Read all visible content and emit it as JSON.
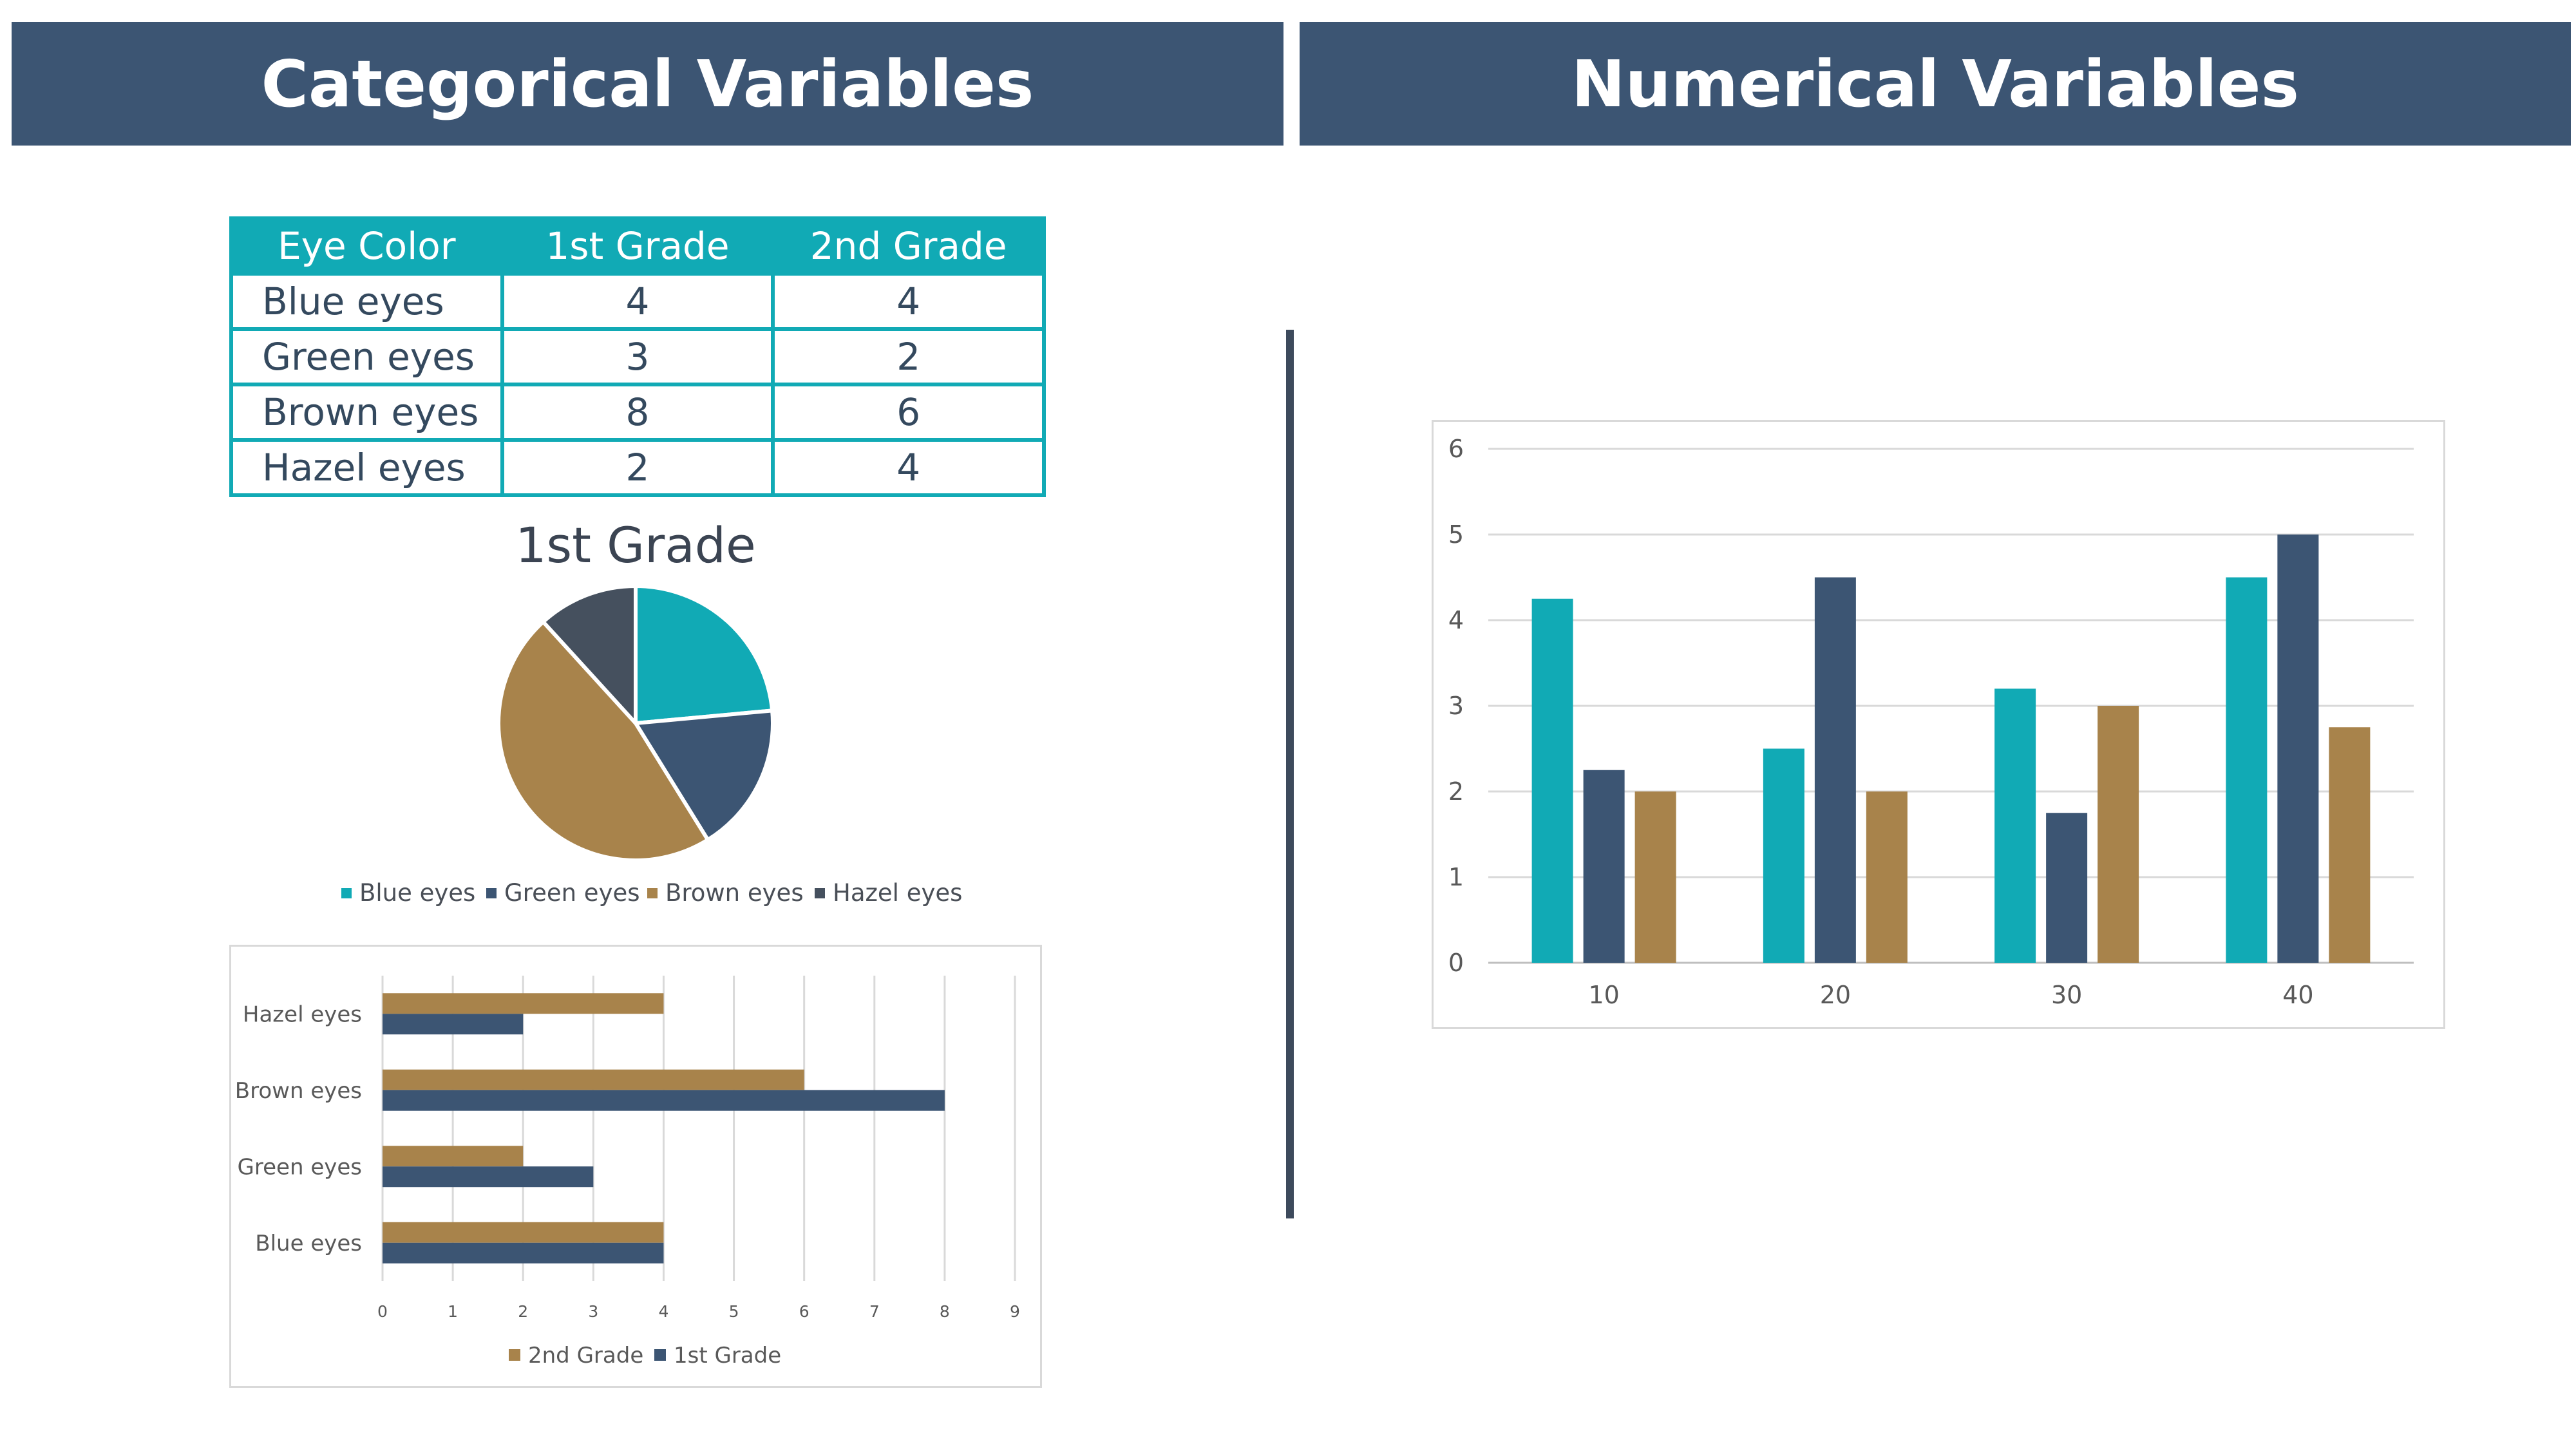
{
  "headers": {
    "left": "Categorical Variables",
    "right": "Numerical Variables"
  },
  "table": {
    "columns": [
      "Eye Color",
      "1st Grade",
      "2nd Grade"
    ],
    "rows": [
      [
        "Blue eyes",
        "4",
        "4"
      ],
      [
        "Green eyes",
        "3",
        "2"
      ],
      [
        "Brown eyes",
        "8",
        "6"
      ],
      [
        "Hazel eyes",
        "2",
        "4"
      ]
    ]
  },
  "colors": {
    "header": "#3c5573",
    "teal": "#11aab5",
    "navy": "#3c5573",
    "gold": "#a8834b",
    "charcoal": "#45505e"
  },
  "chart_data": [
    {
      "type": "pie",
      "title": "1st Grade",
      "categories": [
        "Blue eyes",
        "Green eyes",
        "Brown eyes",
        "Hazel eyes"
      ],
      "values": [
        4,
        3,
        8,
        2
      ],
      "colors": [
        "#11aab5",
        "#3c5573",
        "#a8834b",
        "#45505e"
      ],
      "legend": "bottom"
    },
    {
      "type": "bar",
      "orientation": "horizontal",
      "categories": [
        "Blue eyes",
        "Green eyes",
        "Brown eyes",
        "Hazel eyes"
      ],
      "series": [
        {
          "name": "2nd Grade",
          "values": [
            4,
            2,
            6,
            4
          ],
          "color": "#a8834b"
        },
        {
          "name": "1st Grade",
          "values": [
            4,
            3,
            8,
            2
          ],
          "color": "#3c5573"
        }
      ],
      "xlim": [
        0,
        9
      ],
      "xticks": [
        "0",
        "1",
        "2",
        "3",
        "4",
        "5",
        "6",
        "7",
        "8",
        "9"
      ],
      "grid": true,
      "legend": "bottom"
    },
    {
      "type": "bar",
      "categories": [
        "10",
        "20",
        "30",
        "40"
      ],
      "series": [
        {
          "values": [
            4.25,
            2.5,
            3.2,
            4.5
          ],
          "color": "#11aab5"
        },
        {
          "values": [
            2.25,
            4.5,
            1.75,
            5
          ],
          "color": "#3c5573"
        },
        {
          "values": [
            2,
            2,
            3,
            2.75
          ],
          "color": "#a8834b"
        }
      ],
      "ylim": [
        0,
        6
      ],
      "yticks": [
        "0",
        "1",
        "2",
        "3",
        "4",
        "5",
        "6"
      ],
      "grid": true
    }
  ]
}
